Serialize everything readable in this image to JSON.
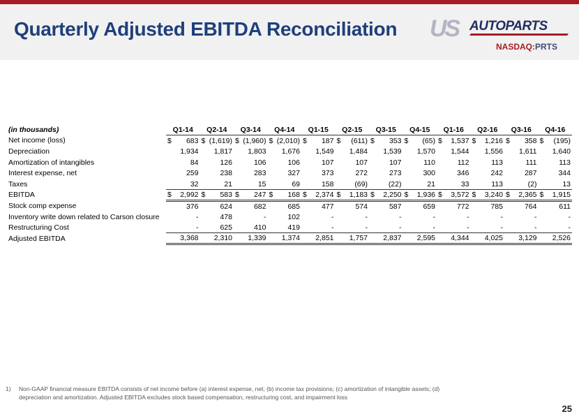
{
  "title": "Quarterly Adjusted EBITDA Reconciliation",
  "logo": {
    "us": "US",
    "autoparts": "AUTOPARTS",
    "ticker_prefix": "NASDAQ:",
    "ticker": "PRTS"
  },
  "table": {
    "unit_label": "(in thousands)",
    "columns": [
      "Q1-14",
      "Q2-14",
      "Q3-14",
      "Q4-14",
      "Q1-15",
      "Q2-15",
      "Q3-15",
      "Q4-15",
      "Q1-16",
      "Q2-16",
      "Q3-16",
      "Q4-16"
    ],
    "rows": [
      {
        "label": "Net income (loss)",
        "dollar": true,
        "values": [
          "683",
          "(1,619)",
          "(1,960)",
          "(2,010)",
          "187",
          "(611)",
          "353",
          "(65)",
          "1,537",
          "1,216",
          "358",
          "(195)"
        ]
      },
      {
        "label": "Depreciation",
        "dollar": false,
        "values": [
          "1,934",
          "1,817",
          "1,803",
          "1,676",
          "1,549",
          "1,484",
          "1,539",
          "1,570",
          "1,544",
          "1,556",
          "1,611",
          "1,640"
        ]
      },
      {
        "label": "Amortization of intangibles",
        "dollar": false,
        "values": [
          "84",
          "126",
          "106",
          "106",
          "107",
          "107",
          "107",
          "110",
          "112",
          "113",
          "111",
          "113"
        ]
      },
      {
        "label": "Interest expense, net",
        "dollar": false,
        "values": [
          "259",
          "238",
          "283",
          "327",
          "373",
          "272",
          "273",
          "300",
          "346",
          "242",
          "287",
          "344"
        ]
      },
      {
        "label": "Taxes",
        "dollar": false,
        "values": [
          "32",
          "21",
          "15",
          "69",
          "158",
          "(69)",
          "(22)",
          "21",
          "33",
          "113",
          "(2)",
          "13"
        ]
      },
      {
        "label": "EBITDA",
        "dollar": true,
        "values": [
          "2,992",
          "583",
          "247",
          "168",
          "2,374",
          "1,183",
          "2,250",
          "1,936",
          "3,572",
          "3,240",
          "2,365",
          "1,915"
        ]
      },
      {
        "label": "Stock comp expense",
        "dollar": false,
        "values": [
          "376",
          "624",
          "682",
          "685",
          "477",
          "574",
          "587",
          "659",
          "772",
          "785",
          "764",
          "611"
        ]
      },
      {
        "label": "Inventory write down related to Carson closure",
        "dollar": false,
        "values": [
          "-",
          "478",
          "-",
          "102",
          "-",
          "-",
          "-",
          "-",
          "-",
          "-",
          "-",
          "-"
        ]
      },
      {
        "label": "Restructuring Cost",
        "dollar": false,
        "values": [
          "-",
          "625",
          "410",
          "419",
          "-",
          "-",
          "-",
          "-",
          "-",
          "-",
          "-",
          "-"
        ]
      },
      {
        "label": "Adjusted EBITDA",
        "dollar": false,
        "values": [
          "3,368",
          "2,310",
          "1,339",
          "1,374",
          "2,851",
          "1,757",
          "2,837",
          "2,595",
          "4,344",
          "4,025",
          "3,129",
          "2,526"
        ]
      }
    ],
    "currency_symbol": "$"
  },
  "footnote": {
    "number": "1)",
    "text": "Non-GAAP financial measure EBITDA consists of net income before (a) interest expense, net; (b) income tax provisions; (c) amortization of intangible assets; (d) depreciation and amortization.  Adjusted EBITDA excludes stock based compensation, restructuring cost, and impairment loss"
  },
  "page_number": "25"
}
